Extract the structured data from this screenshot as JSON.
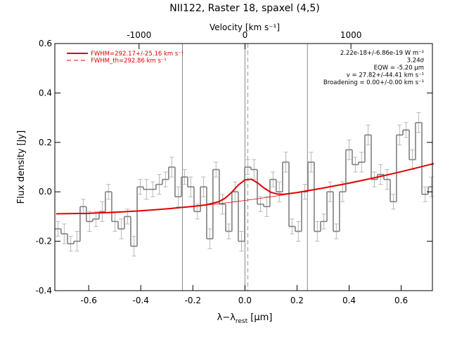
{
  "chart_data": {
    "type": "step",
    "title": "NII122, Raster 18, spaxel (4,5)",
    "xlabel": [
      "λ−λ",
      "rest",
      " [μm]"
    ],
    "ylabel": "Flux density [Jy]",
    "x2label": "Velocity [km s⁻¹]",
    "xlim": [
      -0.73,
      0.72
    ],
    "ylim": [
      -0.4,
      0.6
    ],
    "x2lim": [
      -1795,
      1769
    ],
    "xticks": [
      -0.6,
      -0.4,
      -0.2,
      {
        "value": 0,
        "label": "0.0"
      },
      0.2,
      0.4,
      0.6
    ],
    "yticks": [
      -0.4,
      -0.2,
      {
        "value": 0,
        "label": "0.0"
      },
      0.2,
      0.4,
      0.6
    ],
    "x2ticks": [
      -1000,
      0,
      1000
    ],
    "vlines": [
      -0.24,
      0,
      0.24
    ],
    "dashed_vline": 0.011,
    "spectrum": {
      "color": "#808080",
      "error_color": "#b8b8b8",
      "x": [
        -0.718,
        -0.694,
        -0.669,
        -0.645,
        -0.621,
        -0.597,
        -0.572,
        -0.548,
        -0.524,
        -0.499,
        -0.475,
        -0.451,
        -0.426,
        -0.402,
        -0.378,
        -0.354,
        -0.329,
        -0.305,
        -0.281,
        -0.256,
        -0.232,
        -0.208,
        -0.183,
        -0.159,
        -0.135,
        -0.111,
        -0.086,
        -0.062,
        -0.038,
        -0.013,
        0.011,
        0.035,
        0.06,
        0.084,
        0.108,
        0.132,
        0.157,
        0.181,
        0.205,
        0.23,
        0.254,
        0.278,
        0.303,
        0.327,
        0.351,
        0.375,
        0.4,
        0.424,
        0.448,
        0.473,
        0.497,
        0.521,
        0.546,
        0.57,
        0.594,
        0.619,
        0.643,
        0.667,
        0.692,
        0.716
      ],
      "values": [
        -0.15,
        -0.17,
        -0.21,
        -0.2,
        -0.06,
        -0.12,
        -0.11,
        -0.08,
        0.0,
        -0.12,
        -0.15,
        -0.1,
        -0.22,
        0.02,
        0.01,
        0.01,
        0.03,
        0.05,
        0.1,
        -0.02,
        0.06,
        0.02,
        -0.08,
        0.02,
        -0.19,
        0.09,
        -0.05,
        -0.16,
        0.0,
        -0.2,
        0.1,
        0.09,
        -0.05,
        -0.06,
        0.05,
        0.0,
        0.12,
        -0.14,
        -0.16,
        0.0,
        0.12,
        -0.16,
        -0.12,
        0.0,
        -0.16,
        0.0,
        0.17,
        0.11,
        0.12,
        0.23,
        0.05,
        0.07,
        0.05,
        -0.04,
        0.23,
        0.25,
        0.13,
        0.28,
        -0.01,
        0.02
      ],
      "errors": [
        0.03,
        0.04,
        0.03,
        0.04,
        0.03,
        0.04,
        0.03,
        0.04,
        0.03,
        0.04,
        0.04,
        0.03,
        0.04,
        0.03,
        0.04,
        0.03,
        0.04,
        0.03,
        0.04,
        0.04,
        0.03,
        0.04,
        0.03,
        0.04,
        0.04,
        0.03,
        0.04,
        0.03,
        0.04,
        0.04,
        0.03,
        0.04,
        0.03,
        0.04,
        0.03,
        0.04,
        0.04,
        0.03,
        0.04,
        0.03,
        0.04,
        0.04,
        0.03,
        0.04,
        0.03,
        0.04,
        0.04,
        0.03,
        0.04,
        0.04,
        0.03,
        0.04,
        0.04,
        0.03,
        0.04,
        0.03,
        0.04,
        0.04,
        0.03,
        0.04
      ]
    },
    "fit_x": [
      -0.725,
      -0.6,
      -0.5,
      -0.4,
      -0.3,
      -0.2,
      -0.15,
      -0.1,
      -0.075,
      -0.05,
      -0.025,
      0,
      0.025,
      0.05,
      0.075,
      0.1,
      0.125,
      0.15,
      0.2,
      0.3,
      0.4,
      0.5,
      0.6,
      0.725
    ],
    "series": [
      {
        "name": "FWHM=292.17+/-25.16 km s⁻¹",
        "color": "#e00000",
        "width": 2,
        "values": [
          -0.089,
          -0.087,
          -0.083,
          -0.077,
          -0.069,
          -0.059,
          -0.053,
          -0.04,
          -0.025,
          -0.001,
          0.028,
          0.048,
          0.051,
          0.035,
          0.014,
          -0.002,
          -0.009,
          -0.01,
          -0.003,
          0.015,
          0.035,
          0.0575,
          0.0814,
          0.114
        ]
      },
      {
        "name": "FWHM_th=292.86 km s⁻¹",
        "color": "#e00000",
        "width": 1,
        "dash": true,
        "values": null
      },
      {
        "color": "#e00000",
        "width": 0.8,
        "values": [
          -0.089,
          -0.087,
          -0.083,
          -0.077,
          -0.069,
          -0.059,
          -0.054,
          -0.048,
          -0.045,
          -0.042,
          -0.0385,
          -0.035,
          -0.0314,
          -0.0278,
          -0.024,
          -0.0201,
          -0.0161,
          -0.012,
          -0.003,
          0.015,
          0.035,
          0.0575,
          0.0814,
          0.114
        ]
      }
    ],
    "annotations": [
      "2.22e-18+/-6.86e-19 W m⁻²",
      "3.24σ",
      "EQW = -5.20 μm",
      "v = 27.82+/-44.41 km s⁻¹",
      "Broadening = 0.00+/-0.00 km s⁻¹"
    ]
  }
}
